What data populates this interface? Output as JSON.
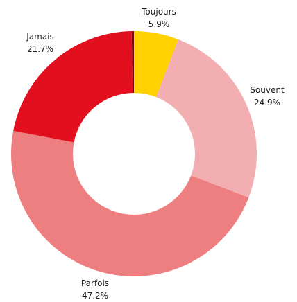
{
  "chart_data": {
    "type": "pie",
    "variant": "donut",
    "title": "",
    "slices": [
      {
        "label": "Toujours",
        "value": 5.9,
        "display": "5.9%",
        "color": "#FFD100"
      },
      {
        "label": "Souvent",
        "value": 24.9,
        "display": "24.9%",
        "color": "#F2AEB0"
      },
      {
        "label": "Parfois",
        "value": 47.2,
        "display": "47.2%",
        "color": "#EE7F81"
      },
      {
        "label": "Jamais",
        "value": 21.7,
        "display": "21.7%",
        "color": "#E2101E"
      },
      {
        "label": "",
        "value": 0.3,
        "display": "",
        "color": "#7A0A10"
      }
    ]
  }
}
